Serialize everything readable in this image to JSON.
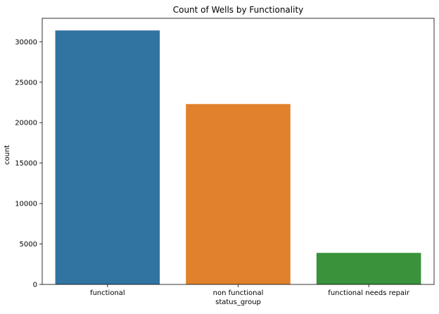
{
  "chart_data": {
    "type": "bar",
    "title": "Count of Wells by Functionality",
    "xlabel": "status_group",
    "ylabel": "count",
    "categories": [
      "functional",
      "non functional",
      "functional needs repair"
    ],
    "values": [
      31400,
      22300,
      3900
    ],
    "colors": [
      "#3274a1",
      "#e1812c",
      "#3a923a"
    ],
    "ylim": [
      0,
      32900
    ],
    "yticks": [
      0,
      5000,
      10000,
      15000,
      20000,
      25000,
      30000
    ],
    "ytick_labels": [
      "0",
      "5000",
      "10000",
      "15000",
      "20000",
      "25000",
      "30000"
    ],
    "grid": false,
    "legend": "none"
  }
}
